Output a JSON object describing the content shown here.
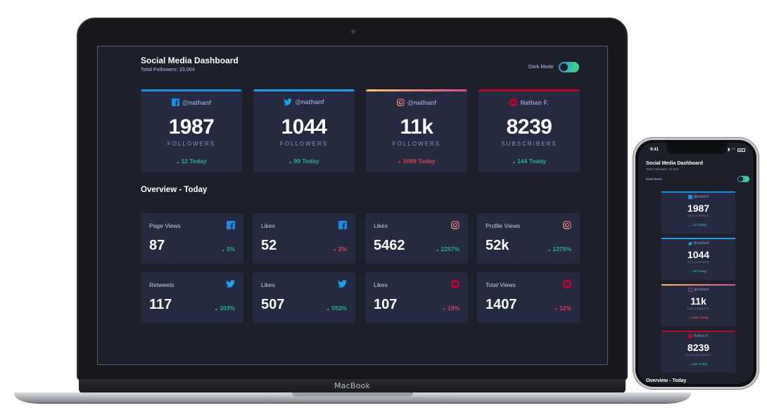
{
  "device": {
    "laptop_label": "MacBook"
  },
  "dashboard": {
    "title": "Social Media Dashboard",
    "total_followers": "Total Followers: 23,004",
    "dark_mode_label": "Dark Mode",
    "overview_title": "Overview - Today"
  },
  "colors": {
    "facebook": "#178fe6",
    "twitter": "#1ca0f2",
    "instagram_from": "#fdc468",
    "instagram_to": "#df4996",
    "youtube": "#c4032a",
    "up": "#1db489",
    "down": "#dc414c"
  },
  "cards": [
    {
      "network": "facebook",
      "icon": "facebook-icon",
      "handle": "@nathanf",
      "count": "1987",
      "unit": "FOLLOWERS",
      "today": "12 Today",
      "trend": "up"
    },
    {
      "network": "twitter",
      "icon": "twitter-icon",
      "handle": "@nathanf",
      "count": "1044",
      "unit": "FOLLOWERS",
      "today": "99 Today",
      "trend": "up"
    },
    {
      "network": "instagram",
      "icon": "instagram-icon",
      "handle": "@nathanf",
      "count": "11k",
      "unit": "FOLLOWERS",
      "today": "1099 Today",
      "trend": "down"
    },
    {
      "network": "youtube",
      "icon": "youtube-icon",
      "handle": "Nathan F.",
      "count": "8239",
      "unit": "SUBSCRIBERS",
      "today": "144 Today",
      "trend": "up"
    }
  ],
  "overview": [
    {
      "label": "Page Views",
      "icon": "facebook-icon",
      "value": "87",
      "change": "3%",
      "trend": "up"
    },
    {
      "label": "Likes",
      "icon": "facebook-icon",
      "value": "52",
      "change": "2%",
      "trend": "down"
    },
    {
      "label": "Likes",
      "icon": "instagram-icon",
      "value": "5462",
      "change": "2257%",
      "trend": "up"
    },
    {
      "label": "Profile Views",
      "icon": "instagram-icon",
      "value": "52k",
      "change": "1375%",
      "trend": "up"
    },
    {
      "label": "Retweets",
      "icon": "twitter-icon",
      "value": "117",
      "change": "303%",
      "trend": "up"
    },
    {
      "label": "Likes",
      "icon": "twitter-icon",
      "value": "507",
      "change": "553%",
      "trend": "up"
    },
    {
      "label": "Likes",
      "icon": "youtube-icon",
      "value": "107",
      "change": "19%",
      "trend": "down"
    },
    {
      "label": "Total Views",
      "icon": "youtube-icon",
      "value": "1407",
      "change": "12%",
      "trend": "down"
    }
  ],
  "phone": {
    "time": "9:41",
    "title": "Social Media Dashboard",
    "total_followers": "Total Followers: 23,004",
    "dark_mode_label": "Dark Mode",
    "overview_title": "Overview - Today"
  },
  "trend_arrows": {
    "up": "▲",
    "down": "▼"
  }
}
